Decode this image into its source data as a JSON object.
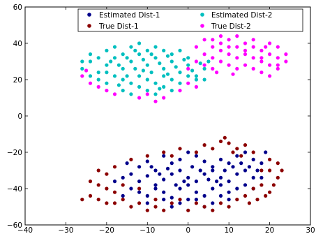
{
  "chart_data": {
    "type": "scatter",
    "title": "",
    "xlabel": "",
    "ylabel": "",
    "xlim": [
      -40,
      30
    ],
    "ylim": [
      -60,
      60
    ],
    "xticks": [
      "−40",
      "−30",
      "−20",
      "−10",
      "0",
      "10",
      "20",
      "30"
    ],
    "yticks": [
      "60",
      "40",
      "20",
      "0",
      "−20",
      "−40",
      "−60"
    ],
    "grid": false,
    "legend_position": "top-right",
    "series": [
      {
        "name": "Estimated Dist-1",
        "color": "#00008b",
        "points": [
          [
            -6,
            -22
          ],
          [
            -10,
            -25
          ],
          [
            -12,
            -28
          ],
          [
            -8,
            -30
          ],
          [
            -4,
            -26
          ],
          [
            -2,
            -24
          ],
          [
            0,
            -20
          ],
          [
            2,
            -22
          ],
          [
            4,
            -25
          ],
          [
            6,
            -28
          ],
          [
            8,
            -24
          ],
          [
            10,
            -26
          ],
          [
            12,
            -22
          ],
          [
            14,
            -20
          ],
          [
            16,
            -24
          ],
          [
            18,
            -26
          ],
          [
            -14,
            -32
          ],
          [
            -16,
            -34
          ],
          [
            -12,
            -36
          ],
          [
            -10,
            -33
          ],
          [
            -8,
            -38
          ],
          [
            -6,
            -35
          ],
          [
            -4,
            -32
          ],
          [
            -2,
            -30
          ],
          [
            0,
            -34
          ],
          [
            2,
            -36
          ],
          [
            4,
            -32
          ],
          [
            6,
            -30
          ],
          [
            8,
            -34
          ],
          [
            10,
            -36
          ],
          [
            12,
            -32
          ],
          [
            14,
            -30
          ],
          [
            16,
            -34
          ],
          [
            -14,
            -40
          ],
          [
            -12,
            -42
          ],
          [
            -10,
            -44
          ],
          [
            -8,
            -40
          ],
          [
            -6,
            -42
          ],
          [
            -4,
            -45
          ],
          [
            -2,
            -40
          ],
          [
            0,
            -38
          ],
          [
            2,
            -42
          ],
          [
            4,
            -44
          ],
          [
            6,
            -40
          ],
          [
            8,
            -38
          ],
          [
            10,
            -42
          ],
          [
            12,
            -40
          ],
          [
            14,
            -38
          ],
          [
            -10,
            -48
          ],
          [
            -6,
            -46
          ],
          [
            -2,
            -48
          ],
          [
            2,
            -46
          ],
          [
            6,
            -48
          ],
          [
            10,
            -46
          ],
          [
            1,
            -28
          ],
          [
            3,
            -30
          ],
          [
            5,
            -35
          ],
          [
            -1,
            -36
          ],
          [
            -3,
            -38
          ],
          [
            7,
            -36
          ],
          [
            9,
            -30
          ],
          [
            11,
            -28
          ],
          [
            -9,
            -28
          ],
          [
            -7,
            -32
          ],
          [
            -5,
            -29
          ],
          [
            13,
            -26
          ],
          [
            15,
            -28
          ],
          [
            17,
            -30
          ],
          [
            -15,
            -26
          ],
          [
            19,
            -20
          ],
          [
            -18,
            -36
          ],
          [
            18,
            -34
          ],
          [
            16,
            -40
          ],
          [
            -16,
            -44
          ],
          [
            0,
            -46
          ],
          [
            4,
            -50
          ],
          [
            -4,
            -50
          ],
          [
            8,
            -44
          ]
        ]
      },
      {
        "name": "True Dist-1",
        "color": "#8b0000",
        "points": [
          [
            -24,
            -44
          ],
          [
            -22,
            -46
          ],
          [
            -20,
            -48
          ],
          [
            -18,
            -42
          ],
          [
            -16,
            -46
          ],
          [
            -14,
            -50
          ],
          [
            -12,
            -48
          ],
          [
            -10,
            -52
          ],
          [
            -8,
            -50
          ],
          [
            -4,
            -48
          ],
          [
            0,
            -52
          ],
          [
            4,
            -50
          ],
          [
            8,
            -48
          ],
          [
            12,
            -46
          ],
          [
            14,
            -44
          ],
          [
            16,
            -40
          ],
          [
            18,
            -38
          ],
          [
            20,
            -42
          ],
          [
            22,
            -34
          ],
          [
            20,
            -30
          ],
          [
            22,
            -26
          ],
          [
            20,
            -24
          ],
          [
            18,
            -30
          ],
          [
            16,
            -20
          ],
          [
            12,
            -18
          ],
          [
            10,
            -15
          ],
          [
            8,
            -14
          ],
          [
            6,
            -18
          ],
          [
            4,
            -16
          ],
          [
            2,
            -20
          ],
          [
            -2,
            -18
          ],
          [
            -6,
            -20
          ],
          [
            -10,
            -22
          ],
          [
            -14,
            -24
          ],
          [
            -18,
            -28
          ],
          [
            -20,
            -32
          ],
          [
            -22,
            -38
          ],
          [
            -24,
            -36
          ],
          [
            -18,
            -48
          ],
          [
            -6,
            -52
          ],
          [
            2,
            -48
          ],
          [
            6,
            -52
          ],
          [
            10,
            -50
          ],
          [
            15,
            -48
          ],
          [
            17,
            -46
          ],
          [
            -16,
            -38
          ],
          [
            -12,
            -40
          ],
          [
            -20,
            -40
          ],
          [
            21,
            -38
          ],
          [
            19,
            -44
          ],
          [
            9,
            -12
          ],
          [
            11,
            -20
          ],
          [
            13,
            -22
          ],
          [
            -8,
            -46
          ],
          [
            -2,
            -46
          ],
          [
            -26,
            -46
          ],
          [
            23,
            -30
          ],
          [
            -22,
            -30
          ],
          [
            -4,
            -22
          ],
          [
            14,
            -16
          ]
        ]
      },
      {
        "name": "Estimated Dist-2",
        "color": "#00bfbf",
        "points": [
          [
            -26,
            26
          ],
          [
            -24,
            30
          ],
          [
            -22,
            24
          ],
          [
            -20,
            28
          ],
          [
            -18,
            32
          ],
          [
            -16,
            26
          ],
          [
            -14,
            30
          ],
          [
            -12,
            34
          ],
          [
            -10,
            28
          ],
          [
            -8,
            32
          ],
          [
            -6,
            26
          ],
          [
            -4,
            30
          ],
          [
            -2,
            24
          ],
          [
            0,
            28
          ],
          [
            2,
            22
          ],
          [
            4,
            26
          ],
          [
            -24,
            22
          ],
          [
            -22,
            20
          ],
          [
            -20,
            18
          ],
          [
            -18,
            22
          ],
          [
            -16,
            20
          ],
          [
            -14,
            18
          ],
          [
            -12,
            22
          ],
          [
            -10,
            20
          ],
          [
            -8,
            18
          ],
          [
            -6,
            22
          ],
          [
            -4,
            20
          ],
          [
            -2,
            18
          ],
          [
            0,
            22
          ],
          [
            2,
            20
          ],
          [
            -20,
            36
          ],
          [
            -18,
            38
          ],
          [
            -16,
            34
          ],
          [
            -14,
            38
          ],
          [
            -12,
            40
          ],
          [
            -10,
            36
          ],
          [
            -8,
            38
          ],
          [
            -6,
            36
          ],
          [
            -4,
            34
          ],
          [
            -2,
            36
          ],
          [
            0,
            32
          ],
          [
            -16,
            14
          ],
          [
            -14,
            12
          ],
          [
            -12,
            16
          ],
          [
            -10,
            14
          ],
          [
            -8,
            12
          ],
          [
            -6,
            16
          ],
          [
            -4,
            14
          ],
          [
            -22,
            32
          ],
          [
            -26,
            30
          ],
          [
            -24,
            34
          ],
          [
            -20,
            24
          ],
          [
            -17,
            28
          ],
          [
            -13,
            26
          ],
          [
            -11,
            31
          ],
          [
            -9,
            24
          ],
          [
            -7,
            29
          ],
          [
            -5,
            33
          ],
          [
            -3,
            27
          ],
          [
            -1,
            31
          ],
          [
            1,
            25
          ],
          [
            3,
            29
          ],
          [
            -19,
            30
          ],
          [
            -15,
            32
          ],
          [
            -11,
            25
          ],
          [
            -15,
            22
          ],
          [
            -9,
            34
          ],
          [
            -5,
            23
          ],
          [
            -13,
            36
          ],
          [
            -17,
            17
          ],
          [
            -7,
            15
          ],
          [
            4,
            20
          ],
          [
            5,
            30
          ]
        ]
      },
      {
        "name": "True Dist-2",
        "color": "#ff00ff",
        "points": [
          [
            0,
            26
          ],
          [
            2,
            30
          ],
          [
            4,
            34
          ],
          [
            6,
            38
          ],
          [
            8,
            40
          ],
          [
            10,
            42
          ],
          [
            12,
            44
          ],
          [
            14,
            40
          ],
          [
            16,
            38
          ],
          [
            18,
            36
          ],
          [
            20,
            34
          ],
          [
            22,
            32
          ],
          [
            24,
            30
          ],
          [
            4,
            28
          ],
          [
            6,
            32
          ],
          [
            8,
            36
          ],
          [
            10,
            34
          ],
          [
            12,
            38
          ],
          [
            14,
            34
          ],
          [
            16,
            32
          ],
          [
            18,
            30
          ],
          [
            20,
            28
          ],
          [
            22,
            26
          ],
          [
            8,
            30
          ],
          [
            10,
            28
          ],
          [
            12,
            32
          ],
          [
            14,
            28
          ],
          [
            16,
            26
          ],
          [
            18,
            24
          ],
          [
            20,
            22
          ],
          [
            6,
            26
          ],
          [
            12,
            26
          ],
          [
            24,
            34
          ],
          [
            22,
            38
          ],
          [
            20,
            40
          ],
          [
            16,
            42
          ],
          [
            8,
            44
          ],
          [
            6,
            42
          ],
          [
            2,
            38
          ],
          [
            4,
            42
          ],
          [
            -26,
            22
          ],
          [
            -24,
            18
          ],
          [
            -22,
            16
          ],
          [
            -20,
            14
          ],
          [
            -18,
            12
          ],
          [
            -12,
            10
          ],
          [
            -10,
            12
          ],
          [
            -6,
            10
          ],
          [
            -2,
            14
          ],
          [
            2,
            16
          ],
          [
            0,
            18
          ],
          [
            -8,
            8
          ],
          [
            -25,
            25
          ],
          [
            10,
            38
          ],
          [
            14,
            36
          ],
          [
            18,
            32
          ],
          [
            22,
            28
          ],
          [
            7,
            24
          ],
          [
            11,
            23
          ],
          [
            19,
            38
          ]
        ]
      }
    ]
  }
}
